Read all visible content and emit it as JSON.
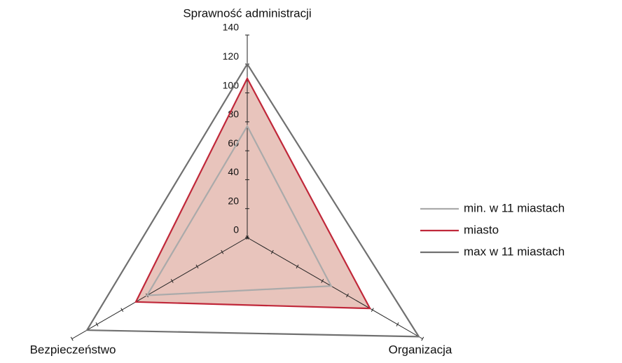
{
  "chart_data": {
    "type": "radar",
    "categories": [
      "Sprawność administracji",
      "Organizacja",
      "Bezpieczeństwo"
    ],
    "series": [
      {
        "name": "min. w 11 miastach",
        "color": "#aaaaaa",
        "values": [
          77,
          67,
          80
        ]
      },
      {
        "name": "miasto",
        "color": "#c0283a",
        "fill": "#e8c4bc",
        "values": [
          110,
          98,
          89
        ]
      },
      {
        "name": "max w 11 miastach",
        "color": "#707070",
        "values": [
          120,
          137,
          128
        ]
      }
    ],
    "ylim": [
      0,
      140
    ],
    "yticks": [
      0,
      20,
      40,
      60,
      80,
      100,
      120,
      140
    ],
    "legend": "right"
  }
}
